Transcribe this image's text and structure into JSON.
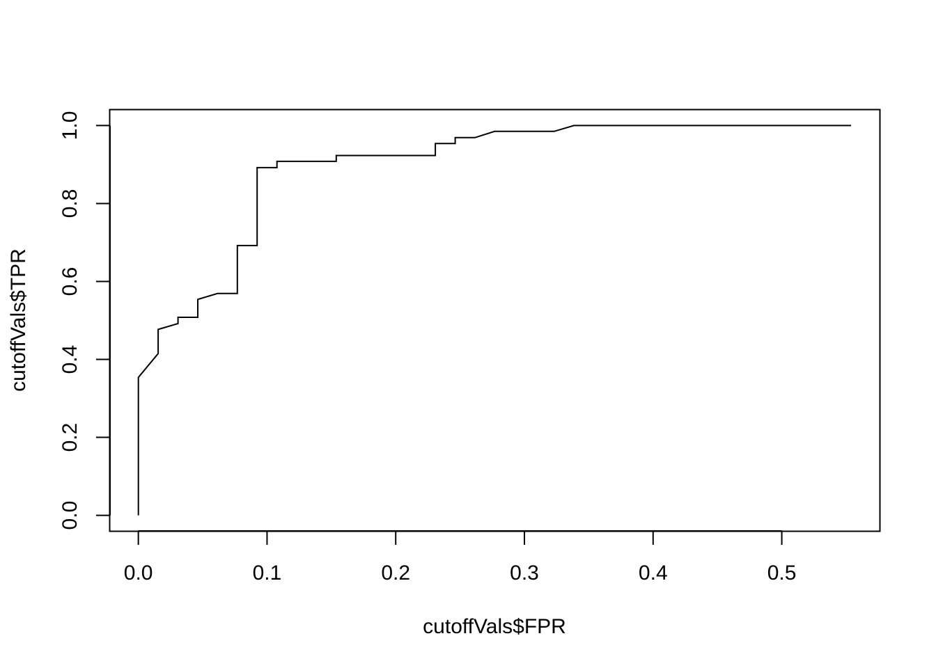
{
  "chart_data": {
    "type": "line",
    "title": "",
    "xlabel": "cutoffVals$FPR",
    "ylabel": "cutoffVals$TPR",
    "xlim": [
      -0.022,
      0.576
    ],
    "ylim": [
      -0.04,
      1.04
    ],
    "x_ticks": [
      "0.0",
      "0.1",
      "0.2",
      "0.3",
      "0.4",
      "0.5"
    ],
    "y_ticks": [
      "0.0",
      "0.2",
      "0.4",
      "0.6",
      "0.8",
      "1.0"
    ],
    "grid": false,
    "legend": "none",
    "series": [
      {
        "x": [
          0.0,
          0.0,
          0.0154,
          0.0154,
          0.0308,
          0.0308,
          0.0462,
          0.0462,
          0.0615,
          0.0769,
          0.0769,
          0.0923,
          0.0923,
          0.1077,
          0.1077,
          0.1538,
          0.1538,
          0.2308,
          0.2308,
          0.2462,
          0.2462,
          0.2615,
          0.2769,
          0.3231,
          0.3385,
          0.5538
        ],
        "y": [
          0.0,
          0.354,
          0.415,
          0.477,
          0.492,
          0.508,
          0.508,
          0.554,
          0.569,
          0.569,
          0.692,
          0.692,
          0.892,
          0.892,
          0.908,
          0.908,
          0.923,
          0.923,
          0.954,
          0.954,
          0.969,
          0.969,
          0.985,
          0.985,
          1.0,
          1.0
        ],
        "color": "#000000"
      }
    ]
  }
}
